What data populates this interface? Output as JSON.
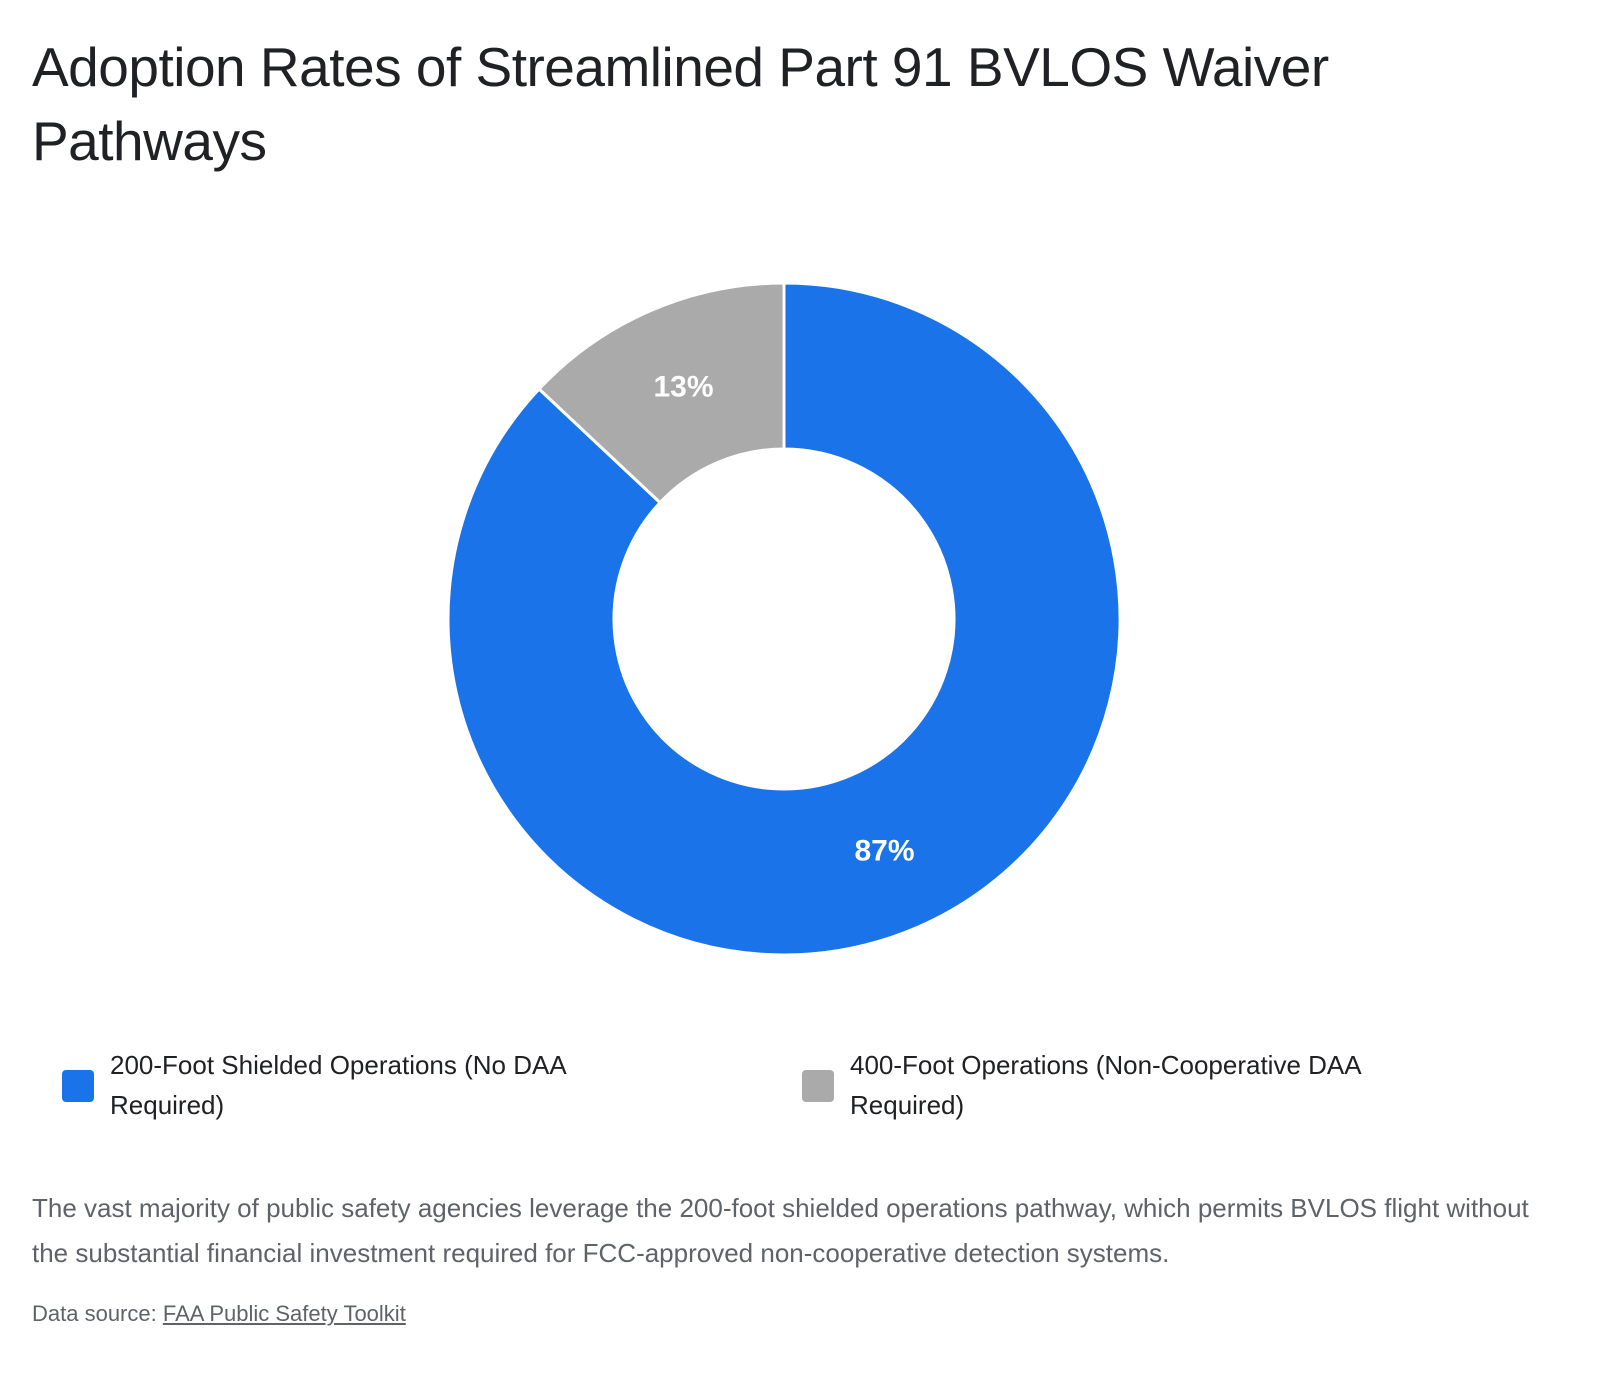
{
  "chart_data": {
    "type": "pie",
    "variant": "donut",
    "title": "Adoption Rates of Streamlined Part 91 BVLOS Waiver Pathways",
    "slices": [
      {
        "label": "200-Foot Shielded Operations (No DAA Required)",
        "value": 87,
        "display": "87%",
        "color": "#1a73e8"
      },
      {
        "label": "400-Foot Operations (Non-Cooperative DAA Required)",
        "value": 13,
        "display": "13%",
        "color": "#aaaaaa"
      }
    ],
    "legend_position": "bottom",
    "description": "The vast majority of public safety agencies leverage the 200-foot shielded operations pathway, which permits BVLOS flight without the substantial financial investment required for FCC-approved non-cooperative detection systems.",
    "source_label": "Data source:",
    "source_link_text": "FAA Public Safety Toolkit"
  }
}
